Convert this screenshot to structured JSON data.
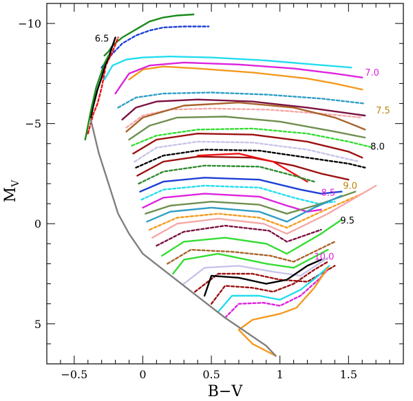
{
  "chart_data": {
    "type": "line",
    "title": "",
    "xlabel": "B−V",
    "ylabel": "M",
    "ylabel_sub": "V",
    "xlim": [
      -0.7,
      1.9
    ],
    "ylim": [
      7.0,
      -11.0
    ],
    "xticks": [
      -0.5,
      0,
      0.5,
      1,
      1.5
    ],
    "xtick_labels": [
      "−0.5",
      "0",
      "0.5",
      "1",
      "1.5"
    ],
    "yticks": [
      -10,
      -5,
      0,
      5
    ],
    "ytick_labels": [
      "−10",
      "−5",
      "0",
      "5"
    ],
    "grid": false,
    "legend": "none",
    "annotations": [
      {
        "text": "6.5",
        "x": -0.35,
        "y": -9.1,
        "color": "#000000"
      },
      {
        "text": "7.0",
        "x": 1.62,
        "y": -7.4,
        "color": "#dd22dd"
      },
      {
        "text": "7.5",
        "x": 1.7,
        "y": -5.5,
        "color": "#b8860b"
      },
      {
        "text": "8.0",
        "x": 1.66,
        "y": -3.7,
        "color": "#000000"
      },
      {
        "text": "8.5",
        "x": 1.3,
        "y": -1.4,
        "color": "#dd22dd"
      },
      {
        "text": "9.0",
        "x": 1.46,
        "y": -1.75,
        "color": "#b8860b"
      },
      {
        "text": "9.5",
        "x": 1.44,
        "y": 0.0,
        "color": "#000000"
      },
      {
        "text": "10.0",
        "x": 1.25,
        "y": 1.8,
        "color": "#dd22dd"
      }
    ],
    "series": [
      {
        "name": "green-top",
        "color": "#1a8a1a",
        "dash": false,
        "x": [
          -0.28,
          -0.25,
          -0.22,
          -0.15,
          -0.05,
          0.05,
          0.15,
          0.25,
          0.37
        ],
        "y": [
          -8.4,
          -8.6,
          -8.9,
          -9.3,
          -9.7,
          -10.1,
          -10.3,
          -10.4,
          -10.45
        ]
      },
      {
        "name": "blue-top",
        "color": "#1d3fd8",
        "dash": true,
        "x": [
          -0.3,
          -0.27,
          -0.22,
          -0.15,
          -0.05,
          0.05,
          0.15,
          0.3,
          0.48
        ],
        "y": [
          -7.8,
          -8.1,
          -8.5,
          -9.0,
          -9.4,
          -9.65,
          -9.8,
          -9.85,
          -9.85
        ]
      },
      {
        "name": "cyan",
        "color": "#22ddee",
        "dash": false,
        "x": [
          -0.28,
          -0.22,
          -0.12,
          0.0,
          0.2,
          0.5,
          0.9,
          1.25,
          1.52
        ],
        "y": [
          -7.2,
          -7.9,
          -8.2,
          -8.3,
          -8.35,
          -8.3,
          -8.15,
          -7.95,
          -7.8
        ]
      },
      {
        "name": "orange-7",
        "color": "#f39a1e",
        "dash": false,
        "x": [
          -0.1,
          0.0,
          0.15,
          0.4,
          0.8,
          1.2,
          1.4,
          1.6
        ],
        "y": [
          -7.2,
          -7.7,
          -7.85,
          -7.75,
          -7.55,
          -7.25,
          -7.0,
          -6.7
        ]
      },
      {
        "name": "magenta-7",
        "color": "#dd22dd",
        "dash": false,
        "x": [
          -0.2,
          -0.1,
          0.05,
          0.3,
          0.7,
          1.1,
          1.4,
          1.6
        ],
        "y": [
          -6.5,
          -7.5,
          -7.9,
          -8.05,
          -7.95,
          -7.75,
          -7.5,
          -7.3
        ]
      },
      {
        "name": "teal-dashed",
        "color": "#2e9ec5",
        "dash": true,
        "x": [
          -0.18,
          -0.05,
          0.15,
          0.5,
          0.9,
          1.3,
          1.62
        ],
        "y": [
          -5.8,
          -6.3,
          -6.5,
          -6.55,
          -6.45,
          -6.25,
          -6.0
        ]
      },
      {
        "name": "maroon",
        "color": "#7b1040",
        "dash": false,
        "x": [
          -0.15,
          -0.05,
          0.1,
          0.4,
          0.8,
          1.2,
          1.62
        ],
        "y": [
          -5.2,
          -5.8,
          -6.1,
          -6.2,
          -6.1,
          -5.8,
          -5.4
        ]
      },
      {
        "name": "pink-dashed",
        "color": "#f4a8a8",
        "dash": true,
        "x": [
          -0.12,
          0.0,
          0.2,
          0.5,
          0.9,
          1.3,
          1.6
        ],
        "y": [
          -4.8,
          -5.4,
          -5.7,
          -5.75,
          -5.7,
          -5.5,
          -5.3
        ]
      },
      {
        "name": "brown-75",
        "color": "#a8622a",
        "dash": false,
        "x": [
          -0.12,
          0.0,
          0.3,
          0.7,
          1.1,
          1.4,
          1.55,
          1.62
        ],
        "y": [
          -4.6,
          -5.3,
          -5.9,
          -6.05,
          -5.8,
          -5.3,
          -4.9,
          -4.7
        ]
      },
      {
        "name": "olive",
        "color": "#6e8f4f",
        "dash": false,
        "x": [
          -0.1,
          0.05,
          0.25,
          0.6,
          1.0,
          1.4,
          1.62
        ],
        "y": [
          -4.2,
          -4.9,
          -5.3,
          -5.35,
          -5.1,
          -4.6,
          -4.3
        ]
      },
      {
        "name": "green-dashed",
        "color": "#33dd33",
        "dash": true,
        "x": [
          -0.08,
          0.1,
          0.4,
          0.8,
          1.2,
          1.5,
          1.68
        ],
        "y": [
          -3.9,
          -4.4,
          -4.7,
          -4.75,
          -4.5,
          -4.1,
          -3.8
        ]
      },
      {
        "name": "darkred-1",
        "color": "#9b1010",
        "dash": false,
        "x": [
          -0.07,
          0.1,
          0.4,
          0.8,
          1.2,
          1.5,
          1.6
        ],
        "y": [
          -3.5,
          -4.2,
          -4.5,
          -4.45,
          -4.1,
          -3.6,
          -3.3
        ]
      },
      {
        "name": "lavender-dashed",
        "color": "#c7c3ea",
        "dash": true,
        "x": [
          -0.06,
          0.1,
          0.4,
          0.8,
          1.2,
          1.45,
          1.58
        ],
        "y": [
          -3.1,
          -3.8,
          -4.1,
          -4.05,
          -3.7,
          -3.3,
          -3.1
        ]
      },
      {
        "name": "black-dashed-8",
        "color": "#000000",
        "dash": true,
        "x": [
          -0.05,
          0.15,
          0.45,
          0.85,
          1.2,
          1.5,
          1.62
        ],
        "y": [
          -2.8,
          -3.4,
          -3.7,
          -3.65,
          -3.3,
          -3.0,
          -2.8
        ]
      },
      {
        "name": "darkred-2",
        "color": "#9b1010",
        "dash": false,
        "x": [
          -0.04,
          0.15,
          0.4,
          0.8,
          1.1,
          1.3,
          1.5
        ],
        "y": [
          -2.4,
          -3.1,
          -3.35,
          -3.3,
          -2.9,
          -2.5,
          -2.2
        ]
      },
      {
        "name": "red-bright",
        "color": "#ee1111",
        "dash": false,
        "x": [
          0.4,
          0.7,
          0.95,
          1.1,
          1.2
        ],
        "y": [
          -3.4,
          -3.5,
          -3.1,
          -2.5,
          -2.1
        ]
      },
      {
        "name": "green-dashed-2",
        "color": "#2f8a2f",
        "dash": true,
        "x": [
          -0.03,
          0.15,
          0.45,
          0.85,
          1.1,
          1.25
        ],
        "y": [
          -2.0,
          -2.6,
          -2.9,
          -2.85,
          -2.4,
          -2.1
        ]
      },
      {
        "name": "blue-85",
        "color": "#1d3fd8",
        "dash": false,
        "x": [
          -0.02,
          0.15,
          0.45,
          0.85,
          1.15,
          1.3,
          1.45
        ],
        "y": [
          -1.6,
          -2.1,
          -2.3,
          -2.2,
          -1.7,
          -1.5,
          -1.6
        ]
      },
      {
        "name": "cyan-dashed",
        "color": "#22ddee",
        "dash": true,
        "x": [
          -0.01,
          0.15,
          0.45,
          0.85,
          1.1,
          1.28,
          1.4
        ],
        "y": [
          -1.2,
          -1.7,
          -1.9,
          -1.8,
          -1.3,
          -1.0,
          -1.1
        ]
      },
      {
        "name": "magenta-85",
        "color": "#dd22dd",
        "dash": false,
        "x": [
          0.0,
          0.15,
          0.45,
          0.85,
          1.05,
          1.2,
          1.3
        ],
        "y": [
          -0.8,
          -1.3,
          -1.5,
          -1.35,
          -0.9,
          -0.6,
          -0.7
        ]
      },
      {
        "name": "olive-9",
        "color": "#6e8f4f",
        "dash": false,
        "x": [
          0.02,
          0.2,
          0.5,
          0.85,
          1.05,
          1.3,
          1.55
        ],
        "y": [
          -0.5,
          -0.9,
          -1.1,
          -0.95,
          -0.5,
          -1.0,
          -1.6
        ]
      },
      {
        "name": "steelblue-dashed",
        "color": "#2e9ec5",
        "dash": false,
        "x": [
          0.03,
          0.2,
          0.5,
          0.85,
          1.05,
          1.25,
          1.45
        ],
        "y": [
          -0.1,
          -0.6,
          -0.8,
          -0.6,
          -0.1,
          -0.8,
          -1.4
        ]
      },
      {
        "name": "orange-dashed",
        "color": "#f39a1e",
        "dash": true,
        "x": [
          0.05,
          0.25,
          0.55,
          0.85,
          1.05,
          1.3,
          1.6
        ],
        "y": [
          0.3,
          -0.3,
          -0.5,
          -0.3,
          0.2,
          -0.6,
          -1.5
        ]
      },
      {
        "name": "pink-9",
        "color": "#f4a8a8",
        "dash": false,
        "x": [
          0.07,
          0.25,
          0.55,
          0.88,
          1.05,
          1.35,
          1.7
        ],
        "y": [
          0.7,
          0.0,
          -0.25,
          0.0,
          0.5,
          -0.5,
          -1.9
        ]
      },
      {
        "name": "maroon-dashed",
        "color": "#7b1040",
        "dash": true,
        "x": [
          0.1,
          0.3,
          0.6,
          0.92,
          1.05,
          1.3
        ],
        "y": [
          1.1,
          0.4,
          0.1,
          0.35,
          0.9,
          0.3
        ]
      },
      {
        "name": "green-95",
        "color": "#33dd33",
        "dash": false,
        "x": [
          0.14,
          0.3,
          0.6,
          0.9,
          1.05,
          1.3,
          1.45
        ],
        "y": [
          1.6,
          0.9,
          0.7,
          1.0,
          1.5,
          0.5,
          -0.2
        ]
      },
      {
        "name": "brown-dashed",
        "color": "#a8622a",
        "dash": true,
        "x": [
          0.18,
          0.35,
          0.65,
          0.93,
          1.1,
          1.4
        ],
        "y": [
          2.0,
          1.3,
          1.4,
          1.6,
          1.9,
          0.9
        ]
      },
      {
        "name": "green-bright-2",
        "color": "#33dd33",
        "dash": false,
        "x": [
          0.22,
          0.3,
          0.55,
          0.9,
          1.1,
          1.35
        ],
        "y": [
          2.5,
          1.8,
          1.5,
          2.0,
          2.2,
          1.3
        ]
      },
      {
        "name": "lavender",
        "color": "#c7c3ea",
        "dash": false,
        "x": [
          0.3,
          0.45,
          0.7,
          0.95,
          1.15,
          1.35
        ],
        "y": [
          3.0,
          2.2,
          2.1,
          2.4,
          2.6,
          1.7
        ]
      },
      {
        "name": "darkred-dashed-3",
        "color": "#9b1010",
        "dash": true,
        "x": [
          0.38,
          0.55,
          0.8,
          1.0,
          1.2,
          1.4
        ],
        "y": [
          3.4,
          2.5,
          2.5,
          2.8,
          2.9,
          2.1
        ]
      },
      {
        "name": "black-10",
        "color": "#000000",
        "dash": false,
        "x": [
          0.45,
          0.5,
          0.7,
          0.9,
          1.05,
          1.2,
          1.3
        ],
        "y": [
          3.6,
          2.6,
          2.7,
          3.0,
          2.8,
          2.1,
          1.8
        ]
      },
      {
        "name": "darkred-10",
        "color": "#9b1010",
        "dash": true,
        "x": [
          0.5,
          0.6,
          0.8,
          0.95,
          1.1,
          1.25,
          1.35
        ],
        "y": [
          4.0,
          3.1,
          3.2,
          3.4,
          3.0,
          2.3,
          1.9
        ]
      },
      {
        "name": "cyan-10",
        "color": "#22ddee",
        "dash": false,
        "x": [
          0.55,
          0.65,
          0.85,
          1.0,
          1.15,
          1.28,
          1.36
        ],
        "y": [
          4.4,
          3.6,
          3.6,
          3.8,
          3.3,
          2.6,
          2.1
        ]
      },
      {
        "name": "magenta-dashed-10",
        "color": "#dd22dd",
        "dash": true,
        "x": [
          0.6,
          0.7,
          0.88,
          1.0,
          1.15,
          1.28,
          1.35
        ],
        "y": [
          4.7,
          4.0,
          3.95,
          4.1,
          3.6,
          2.8,
          2.3
        ]
      },
      {
        "name": "orange-10",
        "color": "#f39a1e",
        "dash": false,
        "x": [
          0.97,
          0.8,
          0.7,
          0.8,
          1.0,
          1.12,
          1.25,
          1.35
        ],
        "y": [
          6.6,
          6.0,
          5.3,
          4.8,
          4.5,
          4.2,
          3.2,
          2.2
        ]
      },
      {
        "name": "red-dashed-top",
        "color": "#ee1111",
        "dash": true,
        "x": [
          -0.4,
          -0.36,
          -0.33,
          -0.3,
          -0.28,
          -0.27,
          -0.22,
          -0.18
        ],
        "y": [
          -4.5,
          -5.5,
          -6.0,
          -6.8,
          -7.5,
          -7.9,
          -8.6,
          -9.3
        ]
      },
      {
        "name": "black-65",
        "color": "#000000",
        "dash": false,
        "x": [
          -0.38,
          -0.36,
          -0.33,
          -0.3,
          -0.28,
          -0.25,
          -0.22,
          -0.2
        ],
        "y": [
          -5.3,
          -5.9,
          -6.7,
          -7.3,
          -7.8,
          -8.3,
          -8.9,
          -9.3
        ]
      },
      {
        "name": "zams-main",
        "color": "#7f7f7f",
        "dash": false,
        "x": [
          -0.38,
          -0.32,
          -0.25,
          -0.18,
          -0.1,
          0.0,
          0.15,
          0.3,
          0.45,
          0.6,
          0.75,
          0.9,
          0.97
        ],
        "y": [
          -5.2,
          -3.5,
          -2.0,
          -0.5,
          0.5,
          1.5,
          2.3,
          3.1,
          3.9,
          4.7,
          5.4,
          6.1,
          6.6
        ]
      },
      {
        "name": "zams-edge",
        "color": "#1a8a1a",
        "dash": false,
        "x": [
          -0.42,
          -0.38,
          -0.34,
          -0.3,
          -0.28,
          -0.25
        ],
        "y": [
          -4.2,
          -5.6,
          -6.8,
          -7.6,
          -8.0,
          -8.4
        ]
      }
    ]
  }
}
